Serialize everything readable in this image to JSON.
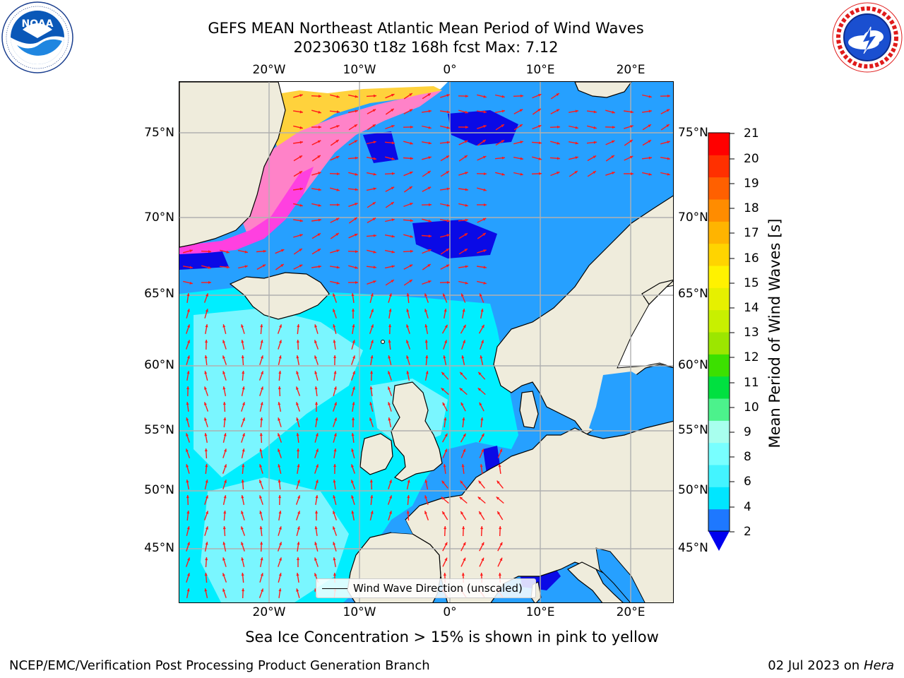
{
  "header": {
    "title_line1": "GEFS MEAN Northeast Atlantic Mean Period of Wind Waves",
    "title_line2": "20230630 t18z 168h fcst   Max: 7.12"
  },
  "logos": {
    "left": {
      "icon": "noaa-logo",
      "text": "NOAA",
      "ring_text": "NATIONAL OCEANIC AND ATMOSPHERIC ADMINISTRATION · U.S. DEPARTMENT OF COMMERCE"
    },
    "right": {
      "icon": "nws-logo",
      "ring_text": "NATIONAL WEATHER SERVICE"
    }
  },
  "map": {
    "lon_labels_top": [
      "20°W",
      "10°W",
      "0°",
      "10°E",
      "20°E"
    ],
    "lon_labels_bottom": [
      "20°W",
      "10°W",
      "0°",
      "10°E",
      "20°E"
    ],
    "lat_labels_left": [
      "75°N",
      "70°N",
      "65°N",
      "60°N",
      "55°N",
      "50°N",
      "45°N"
    ],
    "lat_labels_right": [
      "75°N",
      "70°N",
      "65°N",
      "60°N",
      "55°N",
      "50°N",
      "45°N"
    ],
    "legend_label": "Wind Wave Direction (unscaled)",
    "colors": {
      "land": "#efecdc",
      "ice": "#ffffff",
      "arrow": "#ff1a1a",
      "grid": "#b0b0b0",
      "coast": "#000000"
    }
  },
  "colorbar": {
    "label": "Mean Period of Wind Waves [s]",
    "ticks": [
      "21",
      "20",
      "19",
      "18",
      "17",
      "16",
      "15",
      "14",
      "13",
      "12",
      "11",
      "10",
      "9",
      "8",
      "6",
      "4",
      "2"
    ],
    "colors_low_to_high": [
      "#1e78ff",
      "#00e6ff",
      "#43f4ff",
      "#78ffff",
      "#a8ffee",
      "#4cf28c",
      "#00e040",
      "#3ce000",
      "#9ce600",
      "#c8f000",
      "#e6f000",
      "#fff200",
      "#ffd400",
      "#ffb400",
      "#ff8c00",
      "#ff6000",
      "#ff3000",
      "#ff0000"
    ],
    "under_color": "#0000ee"
  },
  "caption": "Sea Ice Concentration > 15% is shown in pink to yellow",
  "footer": {
    "left": "NCEP/EMC/Verification Post Processing Product Generation Branch",
    "right_date": "02 Jul 2023 on ",
    "right_host": "Hera"
  }
}
